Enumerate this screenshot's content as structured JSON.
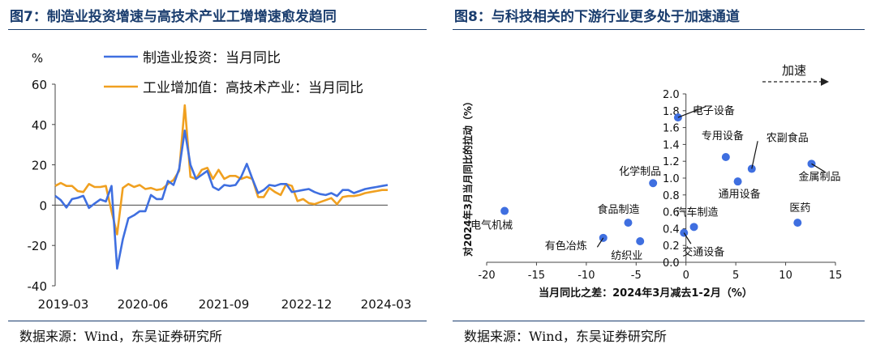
{
  "left": {
    "title": "图7：制造业投资增速与高技术产业工增增速愈发趋同",
    "source": "数据来源：Wind，东吴证券研究所",
    "chart_data": {
      "type": "line",
      "ylabel": "%",
      "ylim": [
        -40,
        60
      ],
      "yticks": [
        "60",
        "40",
        "20",
        "0",
        "-20",
        "-40"
      ],
      "xtick_labels": [
        "2019-03",
        "2020-06",
        "2021-09",
        "2022-12",
        "2024-03"
      ],
      "grid": false,
      "legend_position": "top",
      "series": [
        {
          "name": "制造业投资：当月同比",
          "color": "#3f6fe0",
          "values": [
            4.6,
            2.5,
            -1.2,
            3,
            3.6,
            4.6,
            -1.4,
            0.8,
            2.8,
            1.8,
            9.5,
            -31.5,
            -17,
            -6.5,
            -5,
            -3,
            -3,
            5,
            3,
            3,
            12,
            10,
            18,
            37,
            20,
            13,
            15,
            17,
            9,
            7.5,
            10,
            9.5,
            10,
            14,
            20.5,
            13,
            6,
            7.5,
            10,
            9.5,
            10.5,
            10.5,
            6.5,
            7,
            7.5,
            8,
            6.5,
            5.5,
            5,
            6,
            4.5,
            7.5,
            7.5,
            6,
            7,
            8,
            8.5,
            9,
            9.5,
            10
          ]
        },
        {
          "name": "工业增加值：高技术产业：当月同比",
          "color": "#f0a020",
          "values": [
            9.5,
            11,
            9.5,
            9.5,
            7,
            6.5,
            10.5,
            9,
            9,
            9.5,
            -3,
            -14.5,
            8.5,
            10.5,
            9,
            10,
            8,
            8.5,
            7.5,
            8,
            10.5,
            12.5,
            17,
            49.5,
            14,
            13,
            17.5,
            18.5,
            13,
            17.5,
            13,
            14.5,
            14.5,
            13,
            14,
            13,
            4,
            4,
            8.5,
            6.5,
            5,
            10.5,
            9.5,
            2,
            3,
            1,
            0.5,
            1.5,
            2.5,
            3.5,
            0.5,
            4,
            4.5,
            4.5,
            5,
            6,
            6.5,
            7,
            7.5,
            7.5
          ]
        }
      ]
    }
  },
  "right": {
    "title": "图8：与科技相关的下游行业更多处于加速通道",
    "source": "数据来源：Wind，东吴证券研究所",
    "arrow_label": "加速",
    "chart_data": {
      "type": "scatter",
      "xlabel": "当月同比之差：2024年3月减去1-2月（%）",
      "ylabel": "对2024年3月当月同比的拉动（%）",
      "xlim": [
        -20,
        15
      ],
      "ylim": [
        0,
        2
      ],
      "xticks": [
        "-20",
        "-15",
        "-10",
        "-5",
        "0",
        "5",
        "10",
        "15"
      ],
      "yticks": [
        "0.0",
        "0.2",
        "0.4",
        "0.6",
        "0.8",
        "1.0",
        "1.2",
        "1.4",
        "1.6",
        "1.8",
        "2.0"
      ],
      "point_color": "#3f6fe0",
      "points": [
        {
          "label": "电子设备",
          "x": -0.8,
          "y": 1.72
        },
        {
          "label": "专用设备",
          "x": 4.0,
          "y": 1.25
        },
        {
          "label": "农副食品",
          "x": 6.6,
          "y": 1.11
        },
        {
          "label": "金属制品",
          "x": 12.6,
          "y": 1.17
        },
        {
          "label": "通用设备",
          "x": 5.2,
          "y": 0.96
        },
        {
          "label": "化学制品",
          "x": -3.3,
          "y": 0.94
        },
        {
          "label": "电气机械",
          "x": -18.2,
          "y": 0.61
        },
        {
          "label": "食品制造",
          "x": -5.8,
          "y": 0.47
        },
        {
          "label": "医药",
          "x": 11.2,
          "y": 0.47
        },
        {
          "label": "汽车制造",
          "x": 0.8,
          "y": 0.42
        },
        {
          "label": "交通设备",
          "x": -0.2,
          "y": 0.35
        },
        {
          "label": "有色冶炼",
          "x": -8.3,
          "y": 0.29
        },
        {
          "label": "纺织业",
          "x": -4.6,
          "y": 0.25
        }
      ]
    }
  }
}
